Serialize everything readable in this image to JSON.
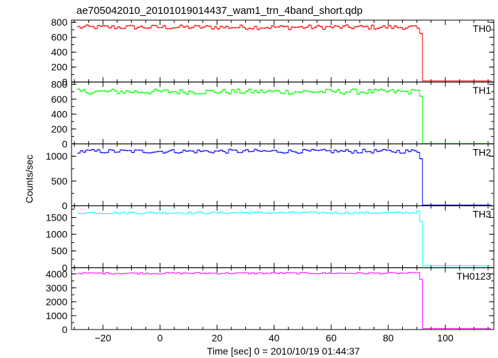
{
  "chart_data": {
    "type": "line",
    "style": "step",
    "title": "ae705042010_20101019014437_wam1_trn_4band_short.qdp",
    "xlabel": "Time [sec] 0 = 2010/10/19 01:44:37",
    "ylabel": "Counts/sec",
    "xlim": [
      -31,
      117
    ],
    "xticks": [
      -20,
      0,
      20,
      40,
      60,
      80,
      100
    ],
    "xtick_labels": [
      "−20",
      "0",
      "20",
      "40",
      "60",
      "80",
      "100"
    ],
    "bin_width": 1,
    "drop_time": 92,
    "panels": [
      {
        "name": "TH0",
        "color": "#ff0000",
        "ylim": [
          0,
          830
        ],
        "yticks": [
          0,
          200,
          400,
          600,
          800
        ],
        "ytick_labels": [
          "0",
          "200",
          "400",
          "600",
          "800"
        ],
        "level_before": 735,
        "noise": 30,
        "drop_values": [
          720,
          650
        ],
        "level_after": 15
      },
      {
        "name": "TH1",
        "color": "#00ff00",
        "ylim": [
          0,
          830
        ],
        "yticks": [
          0,
          200,
          400,
          600,
          800
        ],
        "ytick_labels": [
          "0",
          "200",
          "400",
          "600",
          "800"
        ],
        "level_before": 700,
        "noise": 35,
        "drop_values": [
          720,
          640
        ],
        "level_after": 5
      },
      {
        "name": "TH2",
        "color": "#0000ff",
        "ylim": [
          0,
          1250
        ],
        "yticks": [
          0,
          500,
          1000
        ],
        "ytick_labels": [
          "0",
          "500",
          "1000"
        ],
        "level_before": 1100,
        "noise": 40,
        "drop_values": [
          1080,
          950
        ],
        "level_after": 15
      },
      {
        "name": "TH3",
        "color": "#00ffff",
        "ylim": [
          0,
          1850
        ],
        "yticks": [
          0,
          500,
          1000,
          1500
        ],
        "ytick_labels": [
          "0",
          "500",
          "1000",
          "1500"
        ],
        "level_before": 1640,
        "noise": 30,
        "drop_values": [
          1700,
          1380
        ],
        "level_after": 60
      },
      {
        "name": "TH0123",
        "color": "#ff00ff",
        "ylim": [
          0,
          4450
        ],
        "yticks": [
          0,
          1000,
          2000,
          3000,
          4000
        ],
        "ytick_labels": [
          "0",
          "1000",
          "2000",
          "3000",
          "4000"
        ],
        "level_before": 4050,
        "noise": 60,
        "drop_values": [
          4100,
          3600
        ],
        "level_after": 80
      }
    ]
  }
}
